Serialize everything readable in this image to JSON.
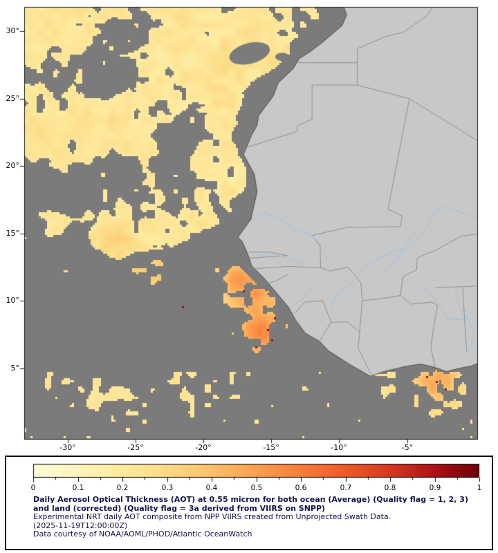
{
  "map": {
    "y_axis_ticks": [
      "30°",
      "25°",
      "20°",
      "15°",
      "10°",
      "5°"
    ],
    "x_axis_ticks": [
      "-30°",
      "-25°",
      "-20°",
      "-15°",
      "-10°",
      "-5°"
    ]
  },
  "legend": {
    "ticks": [
      "0",
      "0.1",
      "0.2",
      "0.3",
      "0.4",
      "0.5",
      "0.6",
      "0.7",
      "0.8",
      "0.9",
      "1"
    ],
    "caption_bold": "Daily Aerosol Optical Thickness (AOT) at 0.55 micron for both ocean (Average) (Quality flag = 1, 2, 3) and land (corrected) (Quality flag = 3a derived from VIIRS on SNPP)",
    "line_experimental": "Experimental NRT daily AOT composite from NPP VIIRS created from Unprojected Swath Data.",
    "line_timestamp": "(2025-11-19T12:00:00Z)",
    "line_courtesy": "Data courtesy of NOAA/AOML/PHOD/Atlantic OceanWatch"
  },
  "colors": {
    "background": "#ffffff",
    "ocean_no_data": "#7b7b7b",
    "land": "#c8c8c8",
    "coastline": "#4f4f4f",
    "country_border": "#8a8a8a",
    "river": "#9fc3e3",
    "plot_border": "#1a1a1a",
    "tick": "#1a1a1a",
    "caption_text": "#13134a",
    "legend_border": "#000000"
  },
  "colormap": [
    {
      "p": 0.0,
      "c": "#FFFCD9"
    },
    {
      "p": 0.1,
      "c": "#FEF5BC"
    },
    {
      "p": 0.2,
      "c": "#FEEA9E"
    },
    {
      "p": 0.3,
      "c": "#FDD985"
    },
    {
      "p": 0.4,
      "c": "#FDC06A"
    },
    {
      "p": 0.5,
      "c": "#FCA050"
    },
    {
      "p": 0.6,
      "c": "#F97D3A"
    },
    {
      "p": 0.7,
      "c": "#EF5A28"
    },
    {
      "p": 0.8,
      "c": "#D63722"
    },
    {
      "p": 0.9,
      "c": "#AC1117"
    },
    {
      "p": 1.0,
      "c": "#6E0009"
    }
  ]
}
